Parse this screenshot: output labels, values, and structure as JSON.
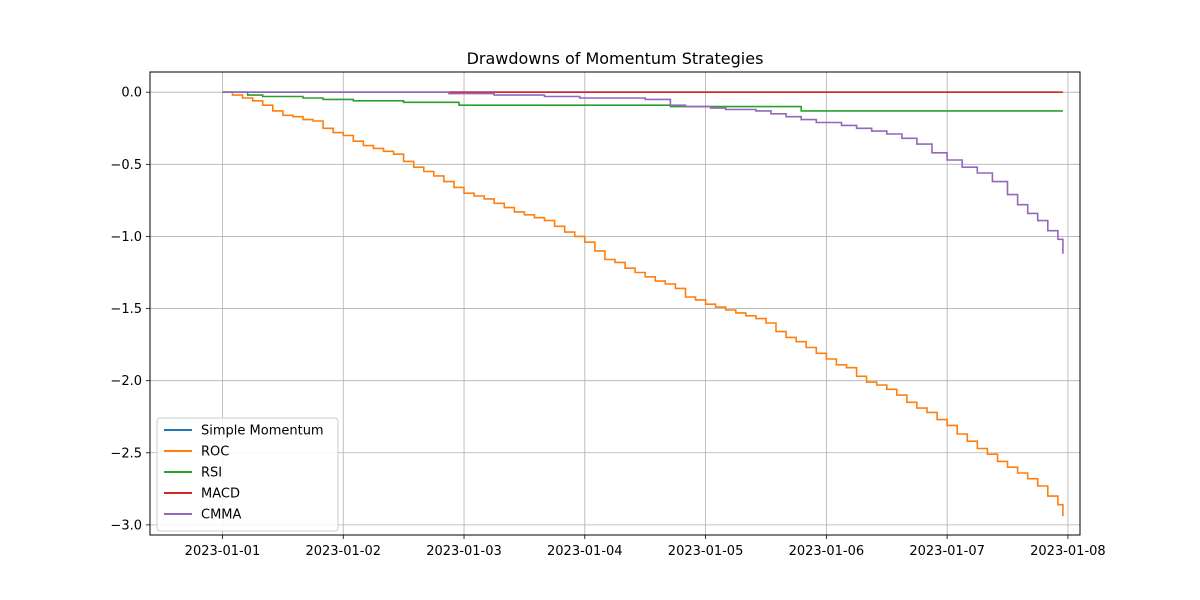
{
  "chart_data": {
    "type": "line",
    "title": "Drawdowns of Momentum Strategies",
    "xlabel": "",
    "ylabel": "",
    "x_axis": {
      "type": "date",
      "min": "2022-12-31T09:36",
      "max": "2023-01-08T02:24",
      "ticks": [
        "2023-01-01",
        "2023-01-02",
        "2023-01-03",
        "2023-01-04",
        "2023-01-05",
        "2023-01-06",
        "2023-01-07",
        "2023-01-08"
      ]
    },
    "y_axis": {
      "min": -3.07,
      "max": 0.14,
      "ticks": [
        0.0,
        -0.5,
        -1.0,
        -1.5,
        -2.0,
        -2.5,
        -3.0
      ],
      "tick_labels": [
        "0.0",
        "−0.5",
        "−1.0",
        "−1.5",
        "−2.0",
        "−2.5",
        "−3.0"
      ]
    },
    "grid": true,
    "legend_position": "lower-left",
    "series": [
      {
        "name": "Simple Momentum",
        "color": "#1f77b4",
        "step": true,
        "points": [
          [
            "2023-01-01T00:00",
            0.0
          ],
          [
            "2023-01-07T22:00",
            0.0
          ]
        ]
      },
      {
        "name": "ROC",
        "color": "#ff7f0e",
        "step": true,
        "points": [
          [
            "2023-01-01T00:00",
            0.0
          ],
          [
            "2023-01-01T02:00",
            -0.02
          ],
          [
            "2023-01-01T04:00",
            -0.04
          ],
          [
            "2023-01-01T06:00",
            -0.06
          ],
          [
            "2023-01-01T08:00",
            -0.09
          ],
          [
            "2023-01-01T10:00",
            -0.13
          ],
          [
            "2023-01-01T12:00",
            -0.16
          ],
          [
            "2023-01-01T14:00",
            -0.17
          ],
          [
            "2023-01-01T16:00",
            -0.19
          ],
          [
            "2023-01-01T18:00",
            -0.2
          ],
          [
            "2023-01-01T20:00",
            -0.25
          ],
          [
            "2023-01-01T22:00",
            -0.28
          ],
          [
            "2023-01-02T00:00",
            -0.3
          ],
          [
            "2023-01-02T02:00",
            -0.34
          ],
          [
            "2023-01-02T04:00",
            -0.37
          ],
          [
            "2023-01-02T06:00",
            -0.39
          ],
          [
            "2023-01-02T08:00",
            -0.41
          ],
          [
            "2023-01-02T10:00",
            -0.43
          ],
          [
            "2023-01-02T12:00",
            -0.48
          ],
          [
            "2023-01-02T14:00",
            -0.52
          ],
          [
            "2023-01-02T16:00",
            -0.55
          ],
          [
            "2023-01-02T18:00",
            -0.58
          ],
          [
            "2023-01-02T20:00",
            -0.62
          ],
          [
            "2023-01-02T22:00",
            -0.66
          ],
          [
            "2023-01-03T00:00",
            -0.7
          ],
          [
            "2023-01-03T02:00",
            -0.72
          ],
          [
            "2023-01-03T04:00",
            -0.74
          ],
          [
            "2023-01-03T06:00",
            -0.77
          ],
          [
            "2023-01-03T08:00",
            -0.8
          ],
          [
            "2023-01-03T10:00",
            -0.83
          ],
          [
            "2023-01-03T12:00",
            -0.85
          ],
          [
            "2023-01-03T14:00",
            -0.87
          ],
          [
            "2023-01-03T16:00",
            -0.89
          ],
          [
            "2023-01-03T18:00",
            -0.93
          ],
          [
            "2023-01-03T20:00",
            -0.97
          ],
          [
            "2023-01-03T22:00",
            -1.0
          ],
          [
            "2023-01-04T00:00",
            -1.04
          ],
          [
            "2023-01-04T02:00",
            -1.1
          ],
          [
            "2023-01-04T04:00",
            -1.16
          ],
          [
            "2023-01-04T06:00",
            -1.18
          ],
          [
            "2023-01-04T08:00",
            -1.22
          ],
          [
            "2023-01-04T10:00",
            -1.25
          ],
          [
            "2023-01-04T12:00",
            -1.28
          ],
          [
            "2023-01-04T14:00",
            -1.31
          ],
          [
            "2023-01-04T16:00",
            -1.33
          ],
          [
            "2023-01-04T18:00",
            -1.36
          ],
          [
            "2023-01-04T20:00",
            -1.42
          ],
          [
            "2023-01-04T22:00",
            -1.44
          ],
          [
            "2023-01-05T00:00",
            -1.47
          ],
          [
            "2023-01-05T02:00",
            -1.49
          ],
          [
            "2023-01-05T04:00",
            -1.51
          ],
          [
            "2023-01-05T06:00",
            -1.53
          ],
          [
            "2023-01-05T08:00",
            -1.55
          ],
          [
            "2023-01-05T10:00",
            -1.57
          ],
          [
            "2023-01-05T12:00",
            -1.6
          ],
          [
            "2023-01-05T14:00",
            -1.66
          ],
          [
            "2023-01-05T16:00",
            -1.7
          ],
          [
            "2023-01-05T18:00",
            -1.73
          ],
          [
            "2023-01-05T20:00",
            -1.77
          ],
          [
            "2023-01-05T22:00",
            -1.81
          ],
          [
            "2023-01-06T00:00",
            -1.85
          ],
          [
            "2023-01-06T02:00",
            -1.89
          ],
          [
            "2023-01-06T04:00",
            -1.91
          ],
          [
            "2023-01-06T06:00",
            -1.97
          ],
          [
            "2023-01-06T08:00",
            -2.01
          ],
          [
            "2023-01-06T10:00",
            -2.03
          ],
          [
            "2023-01-06T12:00",
            -2.06
          ],
          [
            "2023-01-06T14:00",
            -2.1
          ],
          [
            "2023-01-06T16:00",
            -2.15
          ],
          [
            "2023-01-06T18:00",
            -2.19
          ],
          [
            "2023-01-06T20:00",
            -2.22
          ],
          [
            "2023-01-06T22:00",
            -2.27
          ],
          [
            "2023-01-07T00:00",
            -2.31
          ],
          [
            "2023-01-07T02:00",
            -2.37
          ],
          [
            "2023-01-07T04:00",
            -2.42
          ],
          [
            "2023-01-07T06:00",
            -2.47
          ],
          [
            "2023-01-07T08:00",
            -2.51
          ],
          [
            "2023-01-07T10:00",
            -2.56
          ],
          [
            "2023-01-07T12:00",
            -2.6
          ],
          [
            "2023-01-07T14:00",
            -2.64
          ],
          [
            "2023-01-07T16:00",
            -2.68
          ],
          [
            "2023-01-07T18:00",
            -2.73
          ],
          [
            "2023-01-07T20:00",
            -2.8
          ],
          [
            "2023-01-07T22:00",
            -2.86
          ],
          [
            "2023-01-07T23:00",
            -2.94
          ]
        ]
      },
      {
        "name": "RSI",
        "color": "#2ca02c",
        "step": true,
        "points": [
          [
            "2023-01-01T00:00",
            0.0
          ],
          [
            "2023-01-01T05:00",
            -0.02
          ],
          [
            "2023-01-01T08:00",
            -0.03
          ],
          [
            "2023-01-01T16:00",
            -0.04
          ],
          [
            "2023-01-01T20:00",
            -0.05
          ],
          [
            "2023-01-02T02:00",
            -0.06
          ],
          [
            "2023-01-02T12:00",
            -0.07
          ],
          [
            "2023-01-02T23:00",
            -0.09
          ],
          [
            "2023-01-04T17:00",
            -0.1
          ],
          [
            "2023-01-05T19:00",
            -0.13
          ],
          [
            "2023-01-07T23:00",
            -0.13
          ]
        ]
      },
      {
        "name": "MACD",
        "color": "#d62728",
        "step": true,
        "points": [
          [
            "2023-01-02T21:00",
            0.0
          ],
          [
            "2023-01-07T23:00",
            0.0
          ]
        ]
      },
      {
        "name": "CMMA",
        "color": "#9467bd",
        "step": true,
        "points": [
          [
            "2023-01-01T00:00",
            0.0
          ],
          [
            "2023-01-02T21:00",
            -0.01
          ],
          [
            "2023-01-03T06:00",
            -0.02
          ],
          [
            "2023-01-03T16:00",
            -0.03
          ],
          [
            "2023-01-03T23:00",
            -0.04
          ],
          [
            "2023-01-04T12:00",
            -0.05
          ],
          [
            "2023-01-04T17:00",
            -0.09
          ],
          [
            "2023-01-04T20:00",
            -0.1
          ],
          [
            "2023-01-05T01:00",
            -0.11
          ],
          [
            "2023-01-05T04:00",
            -0.12
          ],
          [
            "2023-01-05T10:00",
            -0.13
          ],
          [
            "2023-01-05T13:00",
            -0.15
          ],
          [
            "2023-01-05T16:00",
            -0.17
          ],
          [
            "2023-01-05T19:00",
            -0.19
          ],
          [
            "2023-01-05T22:00",
            -0.21
          ],
          [
            "2023-01-06T03:00",
            -0.23
          ],
          [
            "2023-01-06T06:00",
            -0.25
          ],
          [
            "2023-01-06T09:00",
            -0.27
          ],
          [
            "2023-01-06T12:00",
            -0.29
          ],
          [
            "2023-01-06T15:00",
            -0.32
          ],
          [
            "2023-01-06T18:00",
            -0.36
          ],
          [
            "2023-01-06T21:00",
            -0.42
          ],
          [
            "2023-01-07T00:00",
            -0.47
          ],
          [
            "2023-01-07T03:00",
            -0.52
          ],
          [
            "2023-01-07T06:00",
            -0.56
          ],
          [
            "2023-01-07T09:00",
            -0.62
          ],
          [
            "2023-01-07T12:00",
            -0.71
          ],
          [
            "2023-01-07T14:00",
            -0.78
          ],
          [
            "2023-01-07T16:00",
            -0.84
          ],
          [
            "2023-01-07T18:00",
            -0.89
          ],
          [
            "2023-01-07T20:00",
            -0.96
          ],
          [
            "2023-01-07T22:00",
            -1.02
          ],
          [
            "2023-01-07T23:00",
            -1.12
          ]
        ]
      }
    ]
  }
}
